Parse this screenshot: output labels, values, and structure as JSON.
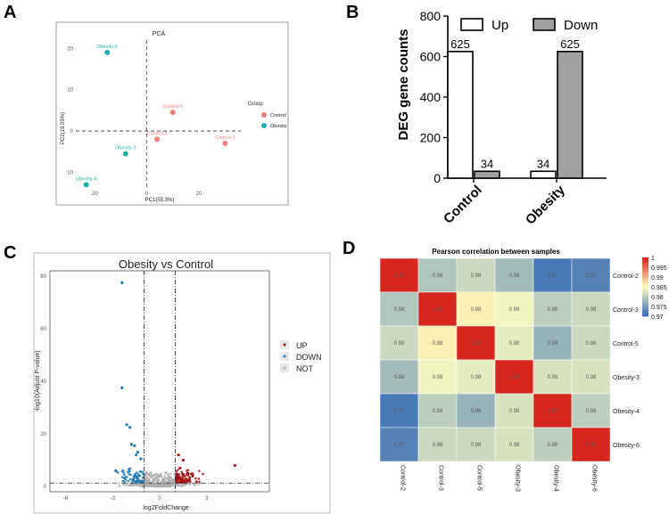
{
  "panels": {
    "a": "A",
    "b": "B",
    "c": "C",
    "d": "D"
  },
  "chart_data": [
    {
      "id": "A",
      "type": "scatter",
      "title": "PCA",
      "xlabel": "PC1(55.3%)",
      "ylabel": "PC2(19.03%)",
      "xlim": [
        -27,
        36
      ],
      "ylim": [
        -14,
        22
      ],
      "xticks": [
        "-20",
        "0",
        "20"
      ],
      "xtick_values": [
        -20,
        0,
        20
      ],
      "yticks": [
        "20",
        "10",
        "0",
        "-10"
      ],
      "ytick_values": [
        20,
        10,
        0,
        -10
      ],
      "legend_title": "Group",
      "legend": [
        {
          "name": "Control",
          "color": "#F08080"
        },
        {
          "name": "Obesity",
          "color": "#20B2AA"
        }
      ],
      "points": [
        {
          "label": "Obesity-6",
          "x": -15,
          "y": 19,
          "group": "Obesity"
        },
        {
          "label": "Control-5",
          "x": 10,
          "y": 4.5,
          "group": "Control"
        },
        {
          "label": "Control-3",
          "x": 4,
          "y": -2,
          "group": "Control"
        },
        {
          "label": "Control-2",
          "x": 30,
          "y": -3,
          "group": "Control"
        },
        {
          "label": "Obesity-3",
          "x": -8,
          "y": -5.5,
          "group": "Obesity"
        },
        {
          "label": "Obesity-4",
          "x": -23,
          "y": -13,
          "group": "Obesity"
        }
      ]
    },
    {
      "id": "B",
      "type": "bar",
      "ylabel": "DEG gene counts",
      "ylim": [
        0,
        800
      ],
      "yticks": [
        "0",
        "200",
        "400",
        "600",
        "800"
      ],
      "ytick_values": [
        0,
        200,
        400,
        600,
        800
      ],
      "categories": [
        "Control",
        "Obesity"
      ],
      "series": [
        {
          "name": "Up",
          "values": [
            625,
            34
          ],
          "color": "#FFFFFF"
        },
        {
          "name": "Down",
          "values": [
            34,
            625
          ],
          "color": "#A0A0A0"
        }
      ],
      "labels": [
        [
          "625",
          "34"
        ],
        [
          "34",
          "625"
        ]
      ]
    },
    {
      "id": "C",
      "type": "scatter",
      "title": "Obesity vs Control",
      "xlabel": "log2FoldChange",
      "ylabel": "-log10(Adjust P-value)",
      "xlim": [
        -7,
        7
      ],
      "ylim": [
        -2,
        82
      ],
      "xticks": [
        "-6",
        "-3",
        "0",
        "3"
      ],
      "xtick_values": [
        -6,
        -3,
        0,
        3
      ],
      "yticks": [
        "0",
        "20",
        "40",
        "60",
        "80"
      ],
      "ytick_values": [
        0,
        20,
        40,
        60,
        80
      ],
      "vlines": [
        -1,
        1
      ],
      "hline": 1.3,
      "legend": [
        {
          "name": "UP",
          "color": "#A01010"
        },
        {
          "name": "DOWN",
          "color": "#1F77B4"
        },
        {
          "name": "NOT",
          "color": "#AAAAAA"
        }
      ],
      "highlight_points": [
        {
          "x": -2.4,
          "y": 77.5,
          "group": "DOWN"
        },
        {
          "x": -2.4,
          "y": 37.5,
          "group": "DOWN"
        },
        {
          "x": -2.1,
          "y": 23.5,
          "group": "DOWN"
        },
        {
          "x": -1.9,
          "y": 22.5,
          "group": "DOWN"
        },
        {
          "x": -1.8,
          "y": 16,
          "group": "DOWN"
        },
        {
          "x": -1.6,
          "y": 15.5,
          "group": "DOWN"
        },
        {
          "x": -1.5,
          "y": 12,
          "group": "DOWN"
        },
        {
          "x": -1.4,
          "y": 13,
          "group": "DOWN"
        },
        {
          "x": -1.2,
          "y": 10.5,
          "group": "DOWN"
        },
        {
          "x": -2.8,
          "y": 6,
          "group": "DOWN"
        },
        {
          "x": 1.2,
          "y": 12,
          "group": "UP"
        },
        {
          "x": 1.5,
          "y": 10,
          "group": "UP"
        },
        {
          "x": 1.3,
          "y": 7,
          "group": "UP"
        },
        {
          "x": 1.8,
          "y": 5,
          "group": "UP"
        },
        {
          "x": 2.1,
          "y": 4,
          "group": "UP"
        },
        {
          "x": 4.8,
          "y": 8,
          "group": "UP"
        },
        {
          "x": 1.1,
          "y": 4.5,
          "group": "UP"
        }
      ]
    },
    {
      "id": "D",
      "type": "heatmap",
      "title": "Pearson correlation between samples",
      "rows": [
        "Control-2",
        "Control-3",
        "Control-5",
        "Obesity-3",
        "Obesity-4",
        "Obesity-6"
      ],
      "cols": [
        "Control-2",
        "Control-3",
        "Control-5",
        "Obesity-3",
        "Obesity-4",
        "Obesity-6"
      ],
      "matrix": [
        [
          1.0,
          0.979,
          0.981,
          0.978,
          0.971,
          0.972
        ],
        [
          0.979,
          1.0,
          0.986,
          0.984,
          0.98,
          0.981
        ],
        [
          0.981,
          0.986,
          1.0,
          0.983,
          0.977,
          0.981
        ],
        [
          0.978,
          0.984,
          0.983,
          1.0,
          0.982,
          0.982
        ],
        [
          0.971,
          0.98,
          0.977,
          0.982,
          1.0,
          0.98
        ],
        [
          0.972,
          0.981,
          0.981,
          0.982,
          0.98,
          1.0
        ]
      ],
      "cell_labels": [
        [
          "1.00",
          "0.98",
          "0.98",
          "0.98",
          "0.97",
          "0.97"
        ],
        [
          "0.98",
          "1.00",
          "0.98",
          "0.98",
          "0.98",
          "0.98"
        ],
        [
          "0.98",
          "0.98",
          "1.00",
          "0.98",
          "0.98",
          "0.98"
        ],
        [
          "0.98",
          "0.98",
          "0.98",
          "1.00",
          "0.98",
          "0.98"
        ],
        [
          "0.97",
          "0.98",
          "0.98",
          "0.98",
          "1.00",
          "0.98"
        ],
        [
          "0.97",
          "0.98",
          "0.98",
          "0.98",
          "0.98",
          "1.00"
        ]
      ],
      "colorbar_ticks": [
        "1",
        "0.995",
        "0.99",
        "0.985",
        "0.98",
        "0.975",
        "0.97"
      ],
      "colorbar_values": [
        1,
        0.995,
        0.99,
        0.985,
        0.98,
        0.975,
        0.97
      ],
      "color_range": [
        0.97,
        1.0
      ],
      "colors": {
        "low": "#3A6FB5",
        "mid": "#FFFFC0",
        "high": "#D7261E"
      }
    }
  ]
}
